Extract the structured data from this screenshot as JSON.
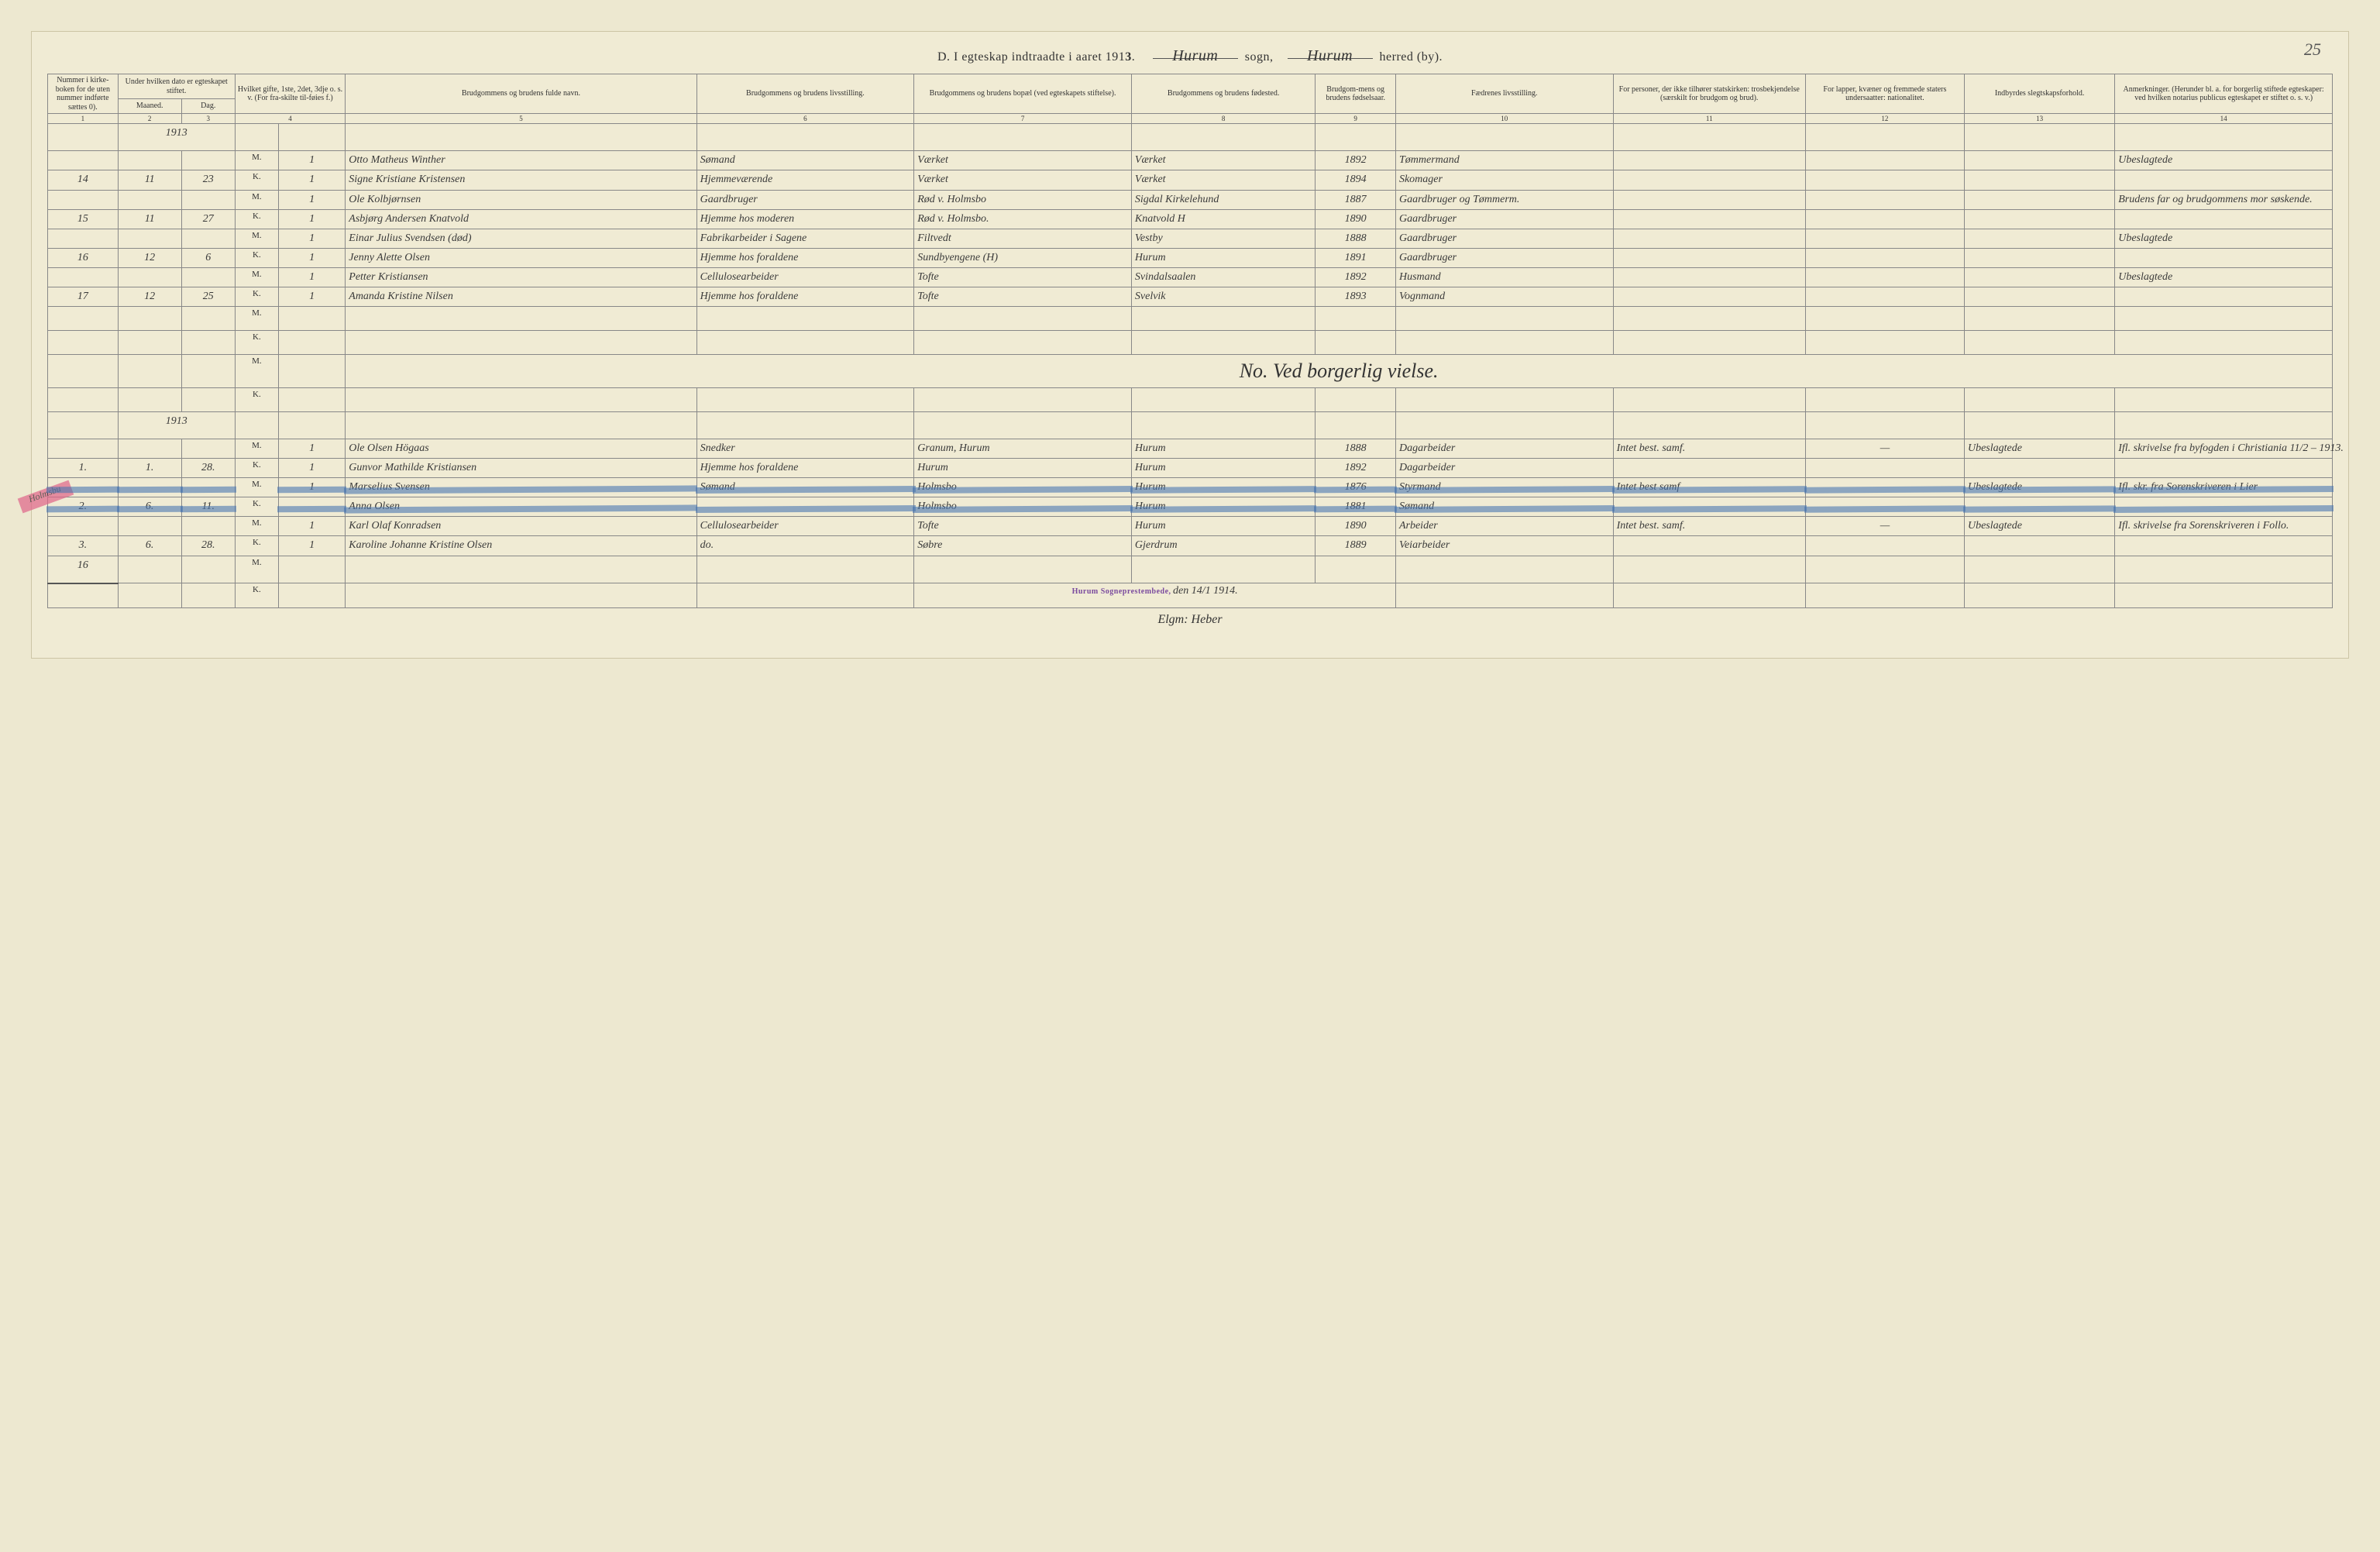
{
  "page_number": "25",
  "title": {
    "prefix": "D. I egteskap indtraadte i aaret 191",
    "year_suffix": "3",
    "sogn_word": "sogn,",
    "herred_word": "herred (by).",
    "sogn_name": "Hurum",
    "herred_name": "Hurum"
  },
  "headers": {
    "c1": "Nummer i kirke-boken for de uten nummer indførte sættes 0).",
    "c2": "Under hvilken dato er egteskapet stiftet.",
    "c2a": "Maaned.",
    "c2b": "Dag.",
    "c3": "Hvilket gifte, 1ste, 2det, 3dje o. s. v. (For fra-skilte til-føies f.)",
    "c4": "",
    "c5": "Brudgommens og brudens fulde navn.",
    "c6": "Brudgommens og brudens livsstilling.",
    "c7": "Brudgommens og brudens bopæl (ved egteskapets stiftelse).",
    "c8": "Brudgommens og brudens fødested.",
    "c9": "Brudgom-mens og brudens fødselsaar.",
    "c10": "Fædrenes livsstilling.",
    "c11": "For personer, der ikke tilhører statskirken: trosbekjendelse (særskilt for brudgom og brud).",
    "c12": "For lapper, kvæner og fremmede staters undersaatter: nationalitet.",
    "c13": "Indbyrdes slegtskapsforhold.",
    "c14": "Anmerkninger. (Herunder bl. a. for borgerlig stiftede egteskaper: ved hvilken notarius publicus egteskapet er stiftet o. s. v.)"
  },
  "colnums": [
    "1",
    "2",
    "3",
    "4",
    "5",
    "6",
    "7",
    "8",
    "9",
    "10",
    "11",
    "12",
    "13",
    "14"
  ],
  "year_header": "1913",
  "rows": [
    {
      "num": "",
      "maaned": "",
      "dag": "",
      "sex": "M.",
      "gifte": "1",
      "name": "Otto Matheus Winther",
      "stand": "Sømand",
      "bopel": "Værket",
      "fodested": "Værket",
      "aar": "1892",
      "fader": "Tømmermand",
      "c11": "",
      "c12": "",
      "c13": "",
      "c14": "Ubeslagtede"
    },
    {
      "num": "14",
      "maaned": "11",
      "dag": "23",
      "sex": "K.",
      "gifte": "1",
      "name": "Signe Kristiane Kristensen",
      "stand": "Hjemmeværende",
      "bopel": "Værket",
      "fodested": "Værket",
      "aar": "1894",
      "fader": "Skomager",
      "c11": "",
      "c12": "",
      "c13": "",
      "c14": ""
    },
    {
      "num": "",
      "maaned": "",
      "dag": "",
      "sex": "M.",
      "gifte": "1",
      "name": "Ole Kolbjørnsen",
      "stand": "Gaardbruger",
      "bopel": "Rød v. Holmsbo",
      "fodested": "Sigdal Kirkelehund",
      "aar": "1887",
      "fader": "Gaardbruger og Tømmerm.",
      "c11": "",
      "c12": "",
      "c13": "",
      "c14": "Brudens far og brudgommens mor søskende."
    },
    {
      "num": "15",
      "maaned": "11",
      "dag": "27",
      "sex": "K.",
      "gifte": "1",
      "name": "Asbjørg Andersen Knatvold",
      "stand": "Hjemme hos moderen",
      "bopel": "Rød v. Holmsbo.",
      "fodested": "Knatvold H",
      "aar": "1890",
      "fader": "Gaardbruger",
      "c11": "",
      "c12": "",
      "c13": "",
      "c14": ""
    },
    {
      "num": "",
      "maaned": "",
      "dag": "",
      "sex": "M.",
      "gifte": "1",
      "name": "Einar Julius Svendsen (død)",
      "stand": "Fabrikarbeider i Sagene",
      "bopel": "Filtvedt",
      "fodested": "Vestby",
      "aar": "1888",
      "fader": "Gaardbruger",
      "c11": "",
      "c12": "",
      "c13": "",
      "c14": "Ubeslagtede"
    },
    {
      "num": "16",
      "maaned": "12",
      "dag": "6",
      "sex": "K.",
      "gifte": "1",
      "name": "Jenny Alette Olsen",
      "stand": "Hjemme hos foraldene",
      "bopel": "Sundbyengene (H)",
      "fodested": "Hurum",
      "aar": "1891",
      "fader": "Gaardbruger",
      "c11": "",
      "c12": "",
      "c13": "",
      "c14": ""
    },
    {
      "num": "",
      "maaned": "",
      "dag": "",
      "sex": "M.",
      "gifte": "1",
      "name": "Petter Kristiansen",
      "stand": "Cellulosearbeider",
      "bopel": "Tofte",
      "fodested": "Svindalsaalen",
      "aar": "1892",
      "fader": "Husmand",
      "c11": "",
      "c12": "",
      "c13": "",
      "c14": "Ubeslagtede"
    },
    {
      "num": "17",
      "maaned": "12",
      "dag": "25",
      "sex": "K.",
      "gifte": "1",
      "name": "Amanda Kristine Nilsen",
      "stand": "Hjemme hos foraldene",
      "bopel": "Tofte",
      "fodested": "Svelvik",
      "aar": "1893",
      "fader": "Vognmand",
      "c11": "",
      "c12": "",
      "c13": "",
      "c14": ""
    }
  ],
  "section_title": "No.  Ved borgerlig vielse.",
  "year_header2": "1913",
  "rows2": [
    {
      "num": "",
      "maaned": "",
      "dag": "",
      "sex": "M.",
      "gifte": "1",
      "name": "Ole Olsen Högaas",
      "stand": "Snedker",
      "bopel": "Granum, Hurum",
      "fodested": "Hurum",
      "aar": "1888",
      "fader": "Dagarbeider",
      "c11": "Intet best. samf.",
      "c12": "—",
      "c13": "Ubeslagtede",
      "c14": "Ifl. skrivelse fra byfogden i Christiania 11/2 – 1913."
    },
    {
      "num": "1.",
      "maaned": "1.",
      "dag": "28.",
      "sex": "K.",
      "gifte": "1",
      "name": "Gunvor Mathilde Kristiansen",
      "stand": "Hjemme hos foraldene",
      "bopel": "Hurum",
      "fodested": "Hurum",
      "aar": "1892",
      "fader": "Dagarbeider",
      "c11": "",
      "c12": "",
      "c13": "",
      "c14": ""
    },
    {
      "struck": true,
      "num": "",
      "maaned": "",
      "dag": "",
      "sex": "M.",
      "gifte": "1",
      "name": "Marselius Svensen",
      "stand": "Sømand",
      "bopel": "Holmsbo",
      "fodested": "Hurum",
      "aar": "1876",
      "fader": "Styrmand",
      "c11": "Intet best samf",
      "c12": "",
      "c13": "Ubeslagtede",
      "c14": "Ifl. skr. fra Sorenskriveren i Lier"
    },
    {
      "struck": true,
      "num": "2.",
      "maaned": "6.",
      "dag": "11.",
      "sex": "K.",
      "gifte": "",
      "name": "Anna Olsen",
      "stand": "",
      "bopel": "Holmsbo",
      "fodested": "Hurum",
      "aar": "1881",
      "fader": "Sømand",
      "c11": "",
      "c12": "",
      "c13": "",
      "c14": ""
    },
    {
      "num": "",
      "maaned": "",
      "dag": "",
      "sex": "M.",
      "gifte": "1",
      "name": "Karl Olaf Konradsen",
      "stand": "Cellulosearbeider",
      "bopel": "Tofte",
      "fodested": "Hurum",
      "aar": "1890",
      "fader": "Arbeider",
      "c11": "Intet best. samf.",
      "c12": "—",
      "c13": "Ubeslagtede",
      "c14": "Ifl. skrivelse fra Sorenskriveren i Follo."
    },
    {
      "num": "3.",
      "maaned": "6.",
      "dag": "28.",
      "sex": "K.",
      "gifte": "1",
      "name": "Karoline Johanne Kristine Olsen",
      "stand": "do.",
      "bopel": "Søbre",
      "fodested": "Gjerdrum",
      "aar": "1889",
      "fader": "Veiarbeider",
      "c11": "",
      "c12": "",
      "c13": "",
      "c14": ""
    }
  ],
  "margin_tag": "Holmsbu",
  "footer": {
    "tally": "16",
    "stamp": "Hurum Sogneprestembede,",
    "date": "den 14/1 1914.",
    "sig": "Elgm: Heber"
  }
}
